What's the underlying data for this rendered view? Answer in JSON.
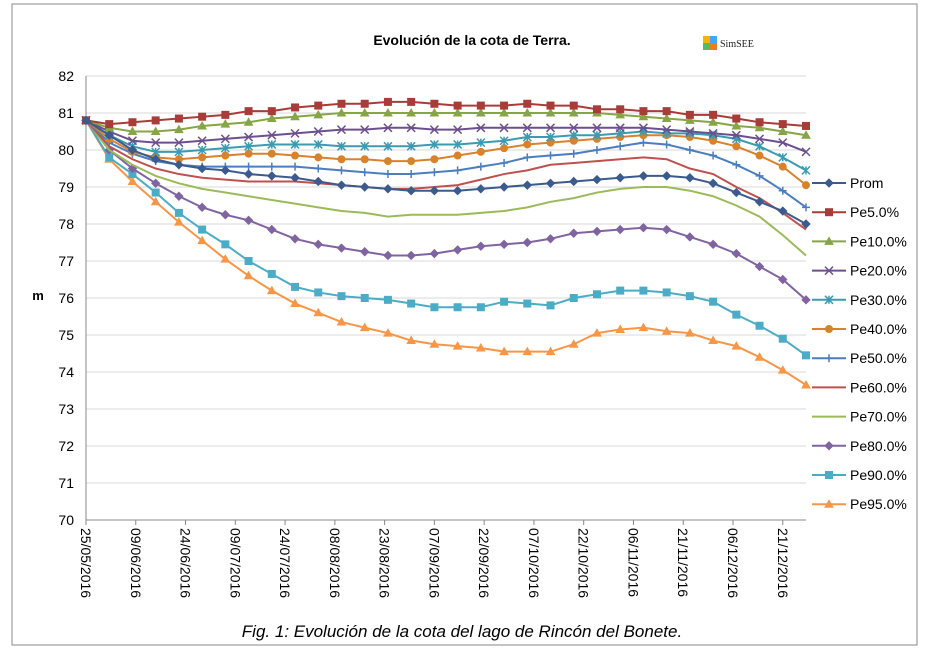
{
  "chart_data": {
    "type": "line",
    "title": "Evolución de la cota de Terra.",
    "logo": "SimSEE",
    "ylabel": "m",
    "caption": "Fig. 1: Evolución de la cota del lago de Rincón del Bonete.",
    "x": [
      "25/05/2016",
      "01/06/2016",
      "08/06/2016",
      "15/06/2016",
      "22/06/2016",
      "29/06/2016",
      "06/07/2016",
      "13/07/2016",
      "20/07/2016",
      "27/07/2016",
      "03/08/2016",
      "10/08/2016",
      "17/08/2016",
      "24/08/2016",
      "31/08/2016",
      "07/09/2016",
      "14/09/2016",
      "21/09/2016",
      "28/09/2016",
      "05/10/2016",
      "12/10/2016",
      "19/10/2016",
      "26/10/2016",
      "02/11/2016",
      "09/11/2016",
      "16/11/2016",
      "23/11/2016",
      "30/11/2016",
      "07/12/2016",
      "14/12/2016",
      "21/12/2016",
      "28/12/2016"
    ],
    "xticks": [
      "25/05/2016",
      "09/06/2016",
      "24/06/2016",
      "09/07/2016",
      "24/07/2016",
      "08/08/2016",
      "23/08/2016",
      "07/09/2016",
      "22/09/2016",
      "07/10/2016",
      "22/10/2016",
      "06/11/2016",
      "21/11/2016",
      "06/12/2016",
      "21/12/2016"
    ],
    "ylim": [
      70,
      82
    ],
    "yticks": [
      70,
      71,
      72,
      73,
      74,
      75,
      76,
      77,
      78,
      79,
      80,
      81,
      82
    ],
    "grid": true,
    "legend": "right",
    "series": [
      {
        "name": "Prom",
        "color": "#3b5b8f",
        "marker": "diamond",
        "values": [
          80.8,
          80.4,
          80.0,
          79.75,
          79.6,
          79.5,
          79.45,
          79.35,
          79.3,
          79.25,
          79.15,
          79.05,
          79.0,
          78.95,
          78.9,
          78.9,
          78.9,
          78.95,
          79.0,
          79.05,
          79.1,
          79.15,
          79.2,
          79.25,
          79.3,
          79.3,
          79.25,
          79.1,
          78.85,
          78.6,
          78.35,
          78.0
        ]
      },
      {
        "name": "Pe5.0%",
        "color": "#a93c38",
        "marker": "square",
        "values": [
          80.8,
          80.7,
          80.75,
          80.8,
          80.85,
          80.9,
          80.95,
          81.05,
          81.05,
          81.15,
          81.2,
          81.25,
          81.25,
          81.3,
          81.3,
          81.25,
          81.2,
          81.2,
          81.2,
          81.25,
          81.2,
          81.2,
          81.1,
          81.1,
          81.05,
          81.05,
          80.95,
          80.95,
          80.85,
          80.75,
          80.7,
          80.65
        ]
      },
      {
        "name": "Pe10.0%",
        "color": "#86a544",
        "marker": "triangle",
        "values": [
          80.8,
          80.6,
          80.5,
          80.5,
          80.55,
          80.65,
          80.7,
          80.75,
          80.85,
          80.9,
          80.95,
          81.0,
          81.0,
          81.0,
          81.0,
          81.0,
          81.0,
          81.0,
          81.0,
          81.0,
          81.0,
          81.0,
          81.0,
          80.95,
          80.9,
          80.85,
          80.8,
          80.75,
          80.65,
          80.6,
          80.5,
          80.4
        ]
      },
      {
        "name": "Pe20.0%",
        "color": "#6c4f8e",
        "marker": "x",
        "values": [
          80.8,
          80.5,
          80.25,
          80.2,
          80.2,
          80.25,
          80.3,
          80.35,
          80.4,
          80.45,
          80.5,
          80.55,
          80.55,
          80.6,
          80.6,
          80.55,
          80.55,
          80.6,
          80.6,
          80.6,
          80.6,
          80.6,
          80.6,
          80.6,
          80.6,
          80.55,
          80.5,
          80.45,
          80.4,
          80.3,
          80.2,
          79.95
        ]
      },
      {
        "name": "Pe30.0%",
        "color": "#3a9bb1",
        "marker": "star",
        "values": [
          80.8,
          80.4,
          80.1,
          79.95,
          79.95,
          80.0,
          80.05,
          80.1,
          80.15,
          80.15,
          80.15,
          80.1,
          80.1,
          80.1,
          80.1,
          80.15,
          80.15,
          80.2,
          80.25,
          80.35,
          80.35,
          80.4,
          80.4,
          80.45,
          80.5,
          80.45,
          80.45,
          80.4,
          80.3,
          80.1,
          79.8,
          79.45
        ]
      },
      {
        "name": "Pe40.0%",
        "color": "#d9822b",
        "marker": "circle",
        "values": [
          80.8,
          80.3,
          79.95,
          79.8,
          79.75,
          79.8,
          79.85,
          79.9,
          79.9,
          79.85,
          79.8,
          79.75,
          79.75,
          79.7,
          79.7,
          79.75,
          79.85,
          79.95,
          80.05,
          80.15,
          80.2,
          80.25,
          80.3,
          80.35,
          80.4,
          80.4,
          80.35,
          80.25,
          80.1,
          79.85,
          79.55,
          79.05
        ]
      },
      {
        "name": "Pe50.0%",
        "color": "#4a7dc2",
        "marker": "plus",
        "values": [
          80.8,
          80.2,
          79.9,
          79.7,
          79.6,
          79.55,
          79.55,
          79.55,
          79.55,
          79.55,
          79.5,
          79.45,
          79.4,
          79.35,
          79.35,
          79.4,
          79.45,
          79.55,
          79.65,
          79.8,
          79.85,
          79.9,
          80.0,
          80.1,
          80.2,
          80.15,
          80.0,
          79.85,
          79.6,
          79.3,
          78.9,
          78.45
        ]
      },
      {
        "name": "Pe60.0%",
        "color": "#c0504d",
        "marker": "none",
        "values": [
          80.8,
          80.1,
          79.75,
          79.5,
          79.35,
          79.25,
          79.2,
          79.15,
          79.15,
          79.15,
          79.1,
          79.05,
          79.0,
          78.95,
          78.95,
          79.0,
          79.05,
          79.2,
          79.35,
          79.45,
          79.6,
          79.65,
          79.7,
          79.75,
          79.8,
          79.75,
          79.5,
          79.35,
          79.0,
          78.7,
          78.3,
          77.85
        ]
      },
      {
        "name": "Pe70.0%",
        "color": "#9bbb59",
        "marker": "none",
        "values": [
          80.8,
          80.0,
          79.6,
          79.3,
          79.1,
          78.95,
          78.85,
          78.75,
          78.65,
          78.55,
          78.45,
          78.35,
          78.3,
          78.2,
          78.25,
          78.25,
          78.25,
          78.3,
          78.35,
          78.45,
          78.6,
          78.7,
          78.85,
          78.95,
          79.0,
          79.0,
          78.9,
          78.75,
          78.5,
          78.2,
          77.7,
          77.15
        ]
      },
      {
        "name": "Pe80.0%",
        "color": "#8064a2",
        "marker": "diamond",
        "values": [
          80.8,
          80.0,
          79.5,
          79.1,
          78.75,
          78.45,
          78.25,
          78.1,
          77.85,
          77.6,
          77.45,
          77.35,
          77.25,
          77.15,
          77.15,
          77.2,
          77.3,
          77.4,
          77.45,
          77.5,
          77.6,
          77.75,
          77.8,
          77.85,
          77.9,
          77.85,
          77.65,
          77.45,
          77.2,
          76.85,
          76.5,
          75.95
        ]
      },
      {
        "name": "Pe90.0%",
        "color": "#4bacc6",
        "marker": "square",
        "values": [
          80.8,
          79.8,
          79.35,
          78.85,
          78.3,
          77.85,
          77.45,
          77.0,
          76.65,
          76.3,
          76.15,
          76.05,
          76.0,
          75.95,
          75.85,
          75.75,
          75.75,
          75.75,
          75.9,
          75.85,
          75.8,
          76.0,
          76.1,
          76.2,
          76.2,
          76.15,
          76.05,
          75.9,
          75.55,
          75.25,
          74.9,
          74.45
        ]
      },
      {
        "name": "Pe95.0%",
        "color": "#f79646",
        "marker": "triangle",
        "values": [
          80.8,
          79.75,
          79.15,
          78.6,
          78.05,
          77.55,
          77.05,
          76.6,
          76.2,
          75.85,
          75.6,
          75.35,
          75.2,
          75.05,
          74.85,
          74.75,
          74.7,
          74.65,
          74.55,
          74.55,
          74.55,
          74.75,
          75.05,
          75.15,
          75.2,
          75.1,
          75.05,
          74.85,
          74.7,
          74.4,
          74.05,
          73.65
        ]
      }
    ]
  }
}
